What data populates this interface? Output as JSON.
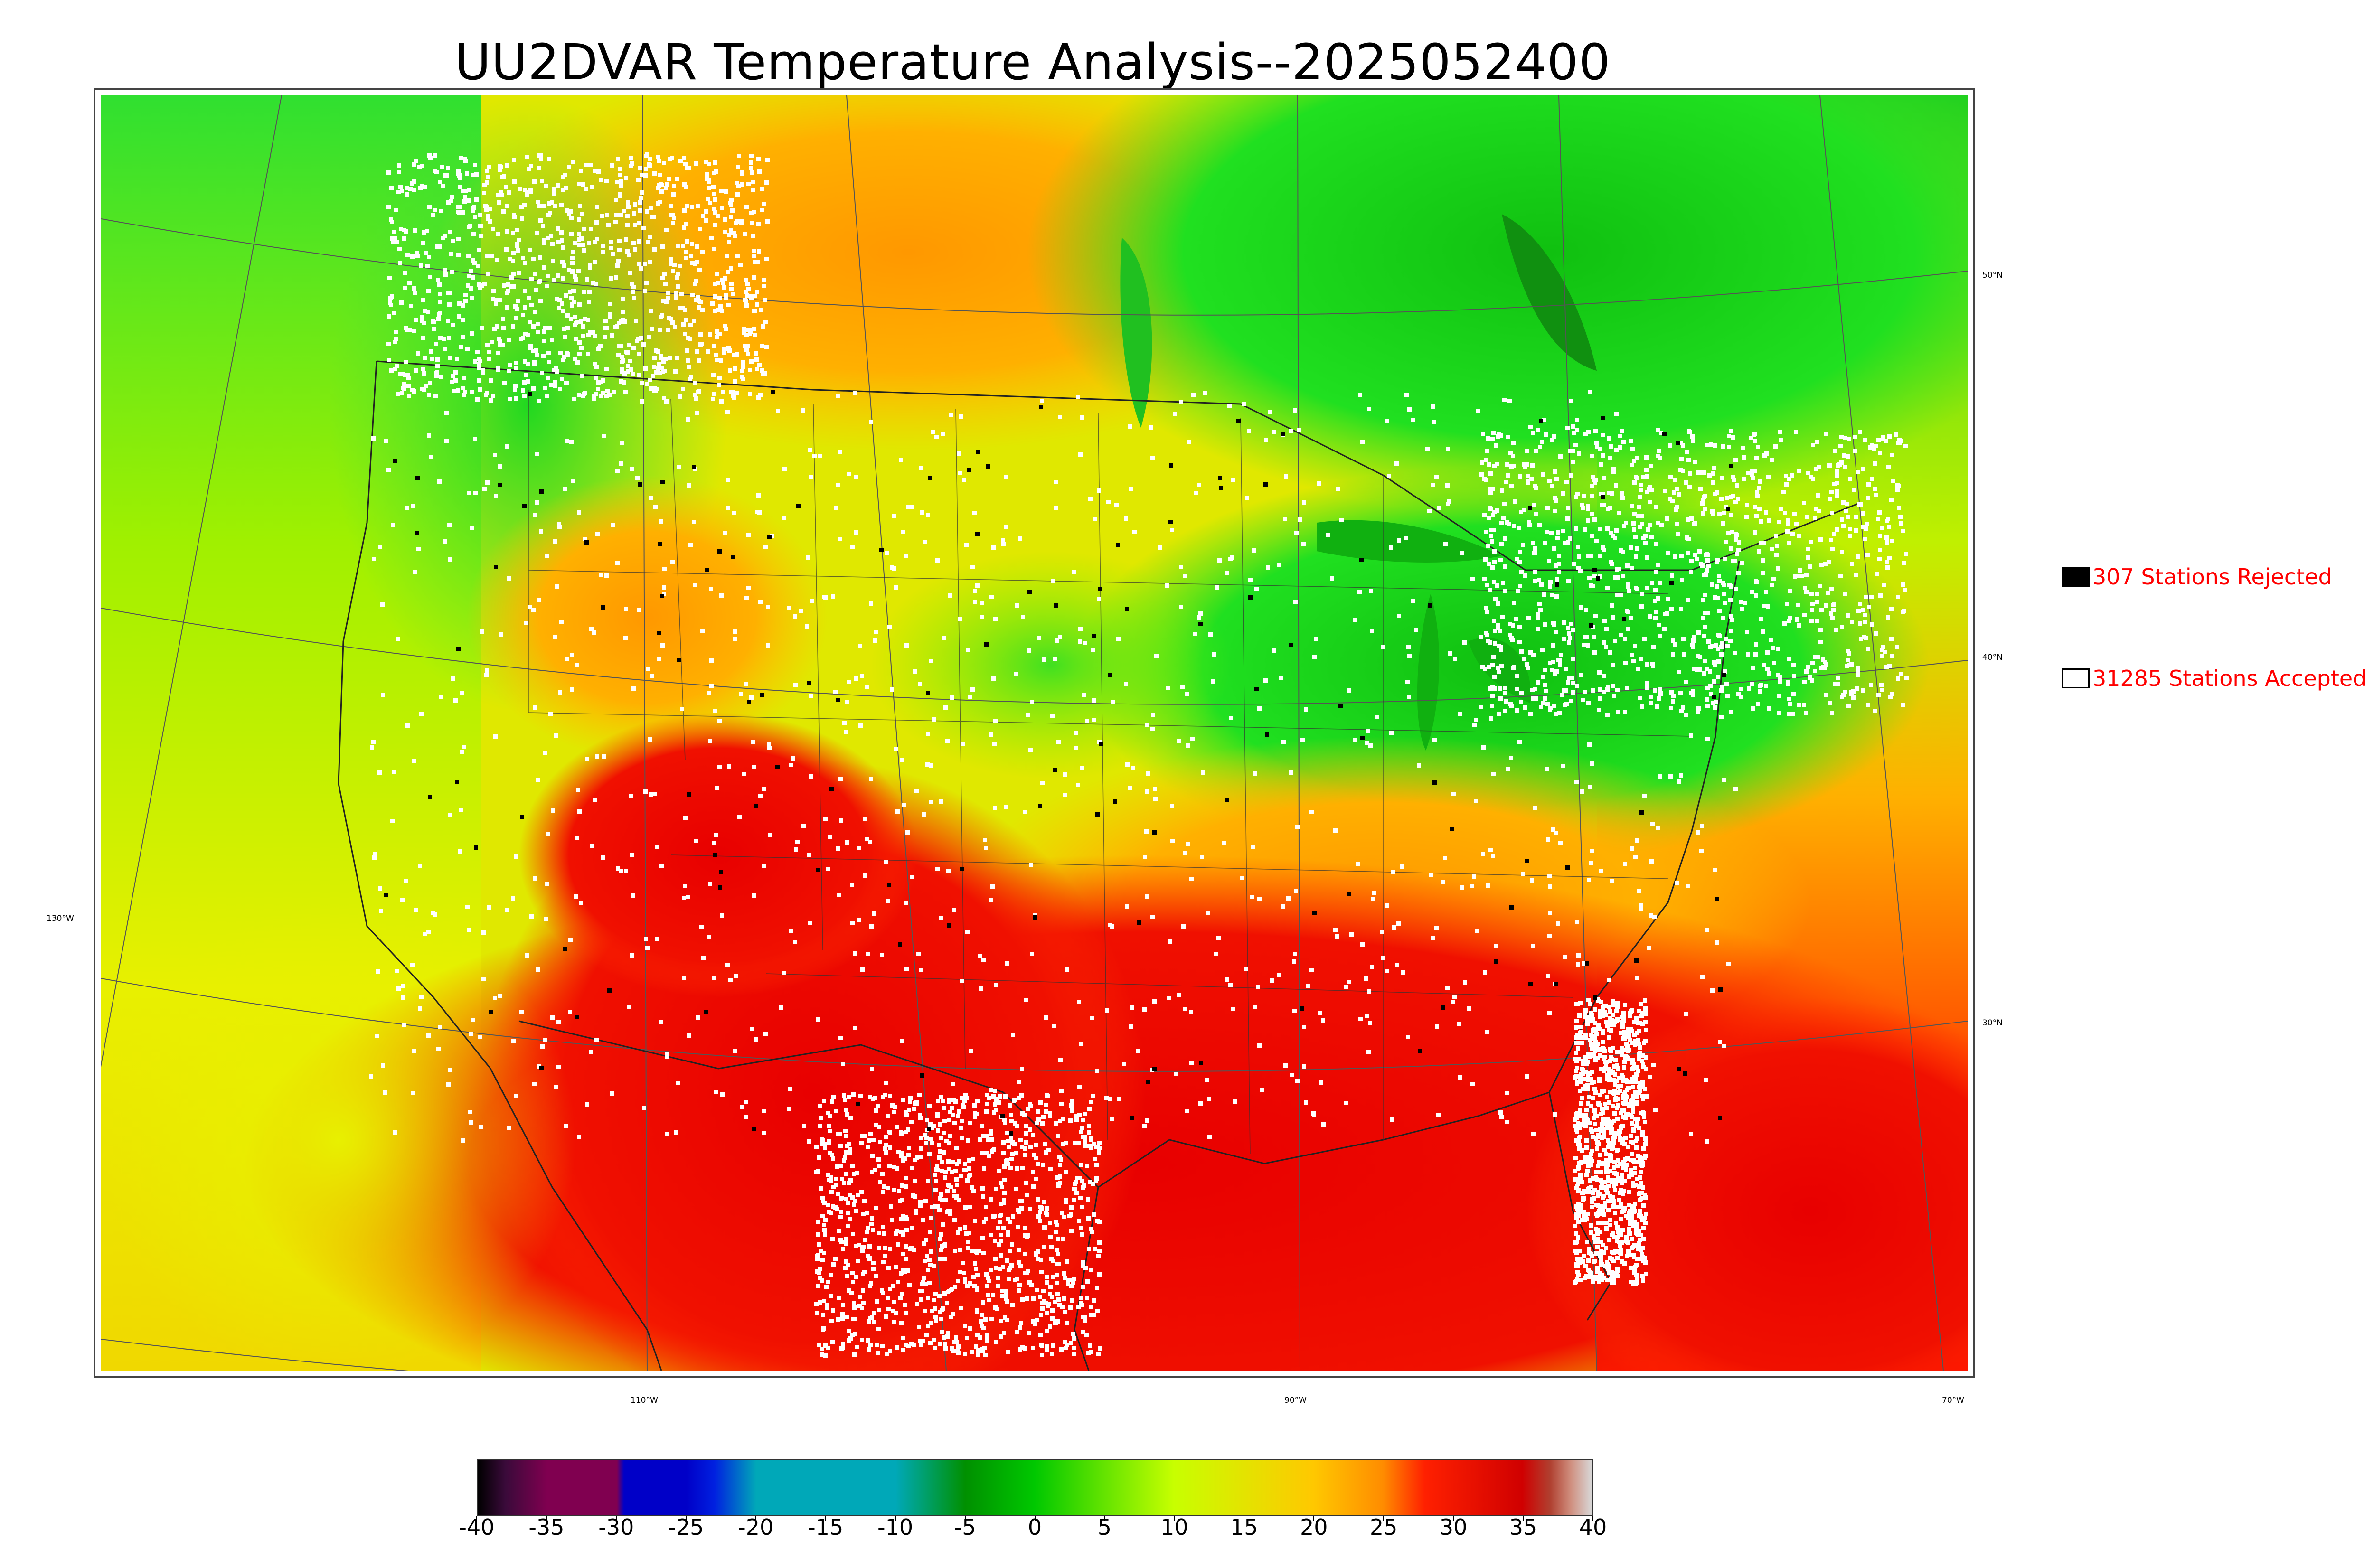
{
  "title": "UU2DVAR Temperature Analysis--2025052400",
  "legend": {
    "rejected_label": "307 Stations Rejected",
    "rejected_color": "#000000",
    "accepted_label": "31285 Stations Accepted",
    "accepted_color": "#ffffff"
  },
  "coordinates": {
    "lat_labels": [
      "50°N",
      "40°N",
      "30°N"
    ],
    "lon_labels": [
      "130°W",
      "110°W",
      "90°W",
      "70°W"
    ]
  },
  "colorbar": {
    "min": -40,
    "max": 40,
    "tick_labels": [
      "-40",
      "-35",
      "-30",
      "-25",
      "-20",
      "-15",
      "-10",
      "-5",
      "0",
      "5",
      "10",
      "15",
      "20",
      "25",
      "30",
      "35",
      "40"
    ],
    "colors": [
      {
        "value": -40,
        "color": "#000000"
      },
      {
        "value": -38,
        "color": "#3a0a3a"
      },
      {
        "value": -35,
        "color": "#800050"
      },
      {
        "value": -30,
        "color": "#800050"
      },
      {
        "value": -29.5,
        "color": "#0000c8"
      },
      {
        "value": -25,
        "color": "#0000c8"
      },
      {
        "value": -23,
        "color": "#0020e0"
      },
      {
        "value": -20,
        "color": "#00a8b8"
      },
      {
        "value": -10,
        "color": "#00a8b8"
      },
      {
        "value": -8,
        "color": "#00a070"
      },
      {
        "value": -5,
        "color": "#009000"
      },
      {
        "value": 0,
        "color": "#00c800"
      },
      {
        "value": 10,
        "color": "#c8ff00"
      },
      {
        "value": 20,
        "color": "#ffc800"
      },
      {
        "value": 25,
        "color": "#ff8c00"
      },
      {
        "value": 28,
        "color": "#ff2000"
      },
      {
        "value": 35,
        "color": "#d00000"
      },
      {
        "value": 37,
        "color": "#b04030"
      },
      {
        "value": 38.5,
        "color": "#d09080"
      },
      {
        "value": 40,
        "color": "#d8d8d8"
      }
    ]
  }
}
